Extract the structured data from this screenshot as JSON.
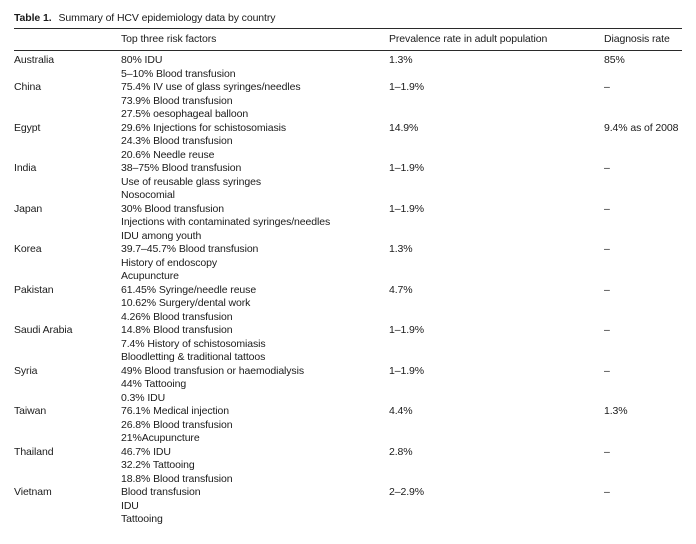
{
  "caption": {
    "label": "Table 1.",
    "text": "Summary of HCV epidemiology data by country"
  },
  "table": {
    "headers": {
      "country": "",
      "risk": "Top three risk factors",
      "prevalence": "Prevalence rate in adult population",
      "diagnosis": "Diagnosis rate"
    },
    "rows": [
      {
        "country": "Australia",
        "risk_factors": [
          "80% IDU",
          "5–10% Blood transfusion"
        ],
        "prevalence": "1.3%",
        "diagnosis": "85%"
      },
      {
        "country": "China",
        "risk_factors": [
          "75.4% IV use of glass syringes/needles",
          "73.9% Blood transfusion",
          "27.5% oesophageal balloon"
        ],
        "prevalence": "1–1.9%",
        "diagnosis": "–"
      },
      {
        "country": "Egypt",
        "risk_factors": [
          "29.6% Injections for schistosomiasis",
          "24.3% Blood transfusion",
          "20.6% Needle reuse"
        ],
        "prevalence": "14.9%",
        "diagnosis": "9.4% as of 2008"
      },
      {
        "country": "India",
        "risk_factors": [
          "38–75% Blood transfusion",
          "Use of reusable glass syringes",
          "Nosocomial"
        ],
        "prevalence": "1–1.9%",
        "diagnosis": "–"
      },
      {
        "country": "Japan",
        "risk_factors": [
          "30% Blood transfusion",
          "Injections with contaminated syringes/needles",
          "IDU among youth"
        ],
        "prevalence": "1–1.9%",
        "diagnosis": "–"
      },
      {
        "country": "Korea",
        "risk_factors": [
          "39.7–45.7% Blood transfusion",
          "History of endoscopy",
          "Acupuncture"
        ],
        "prevalence": "1.3%",
        "diagnosis": "–"
      },
      {
        "country": "Pakistan",
        "risk_factors": [
          "61.45% Syringe/needle reuse",
          "10.62% Surgery/dental work",
          "4.26% Blood transfusion"
        ],
        "prevalence": "4.7%",
        "diagnosis": "–"
      },
      {
        "country": "Saudi Arabia",
        "risk_factors": [
          "14.8% Blood transfusion",
          "7.4% History of schistosomiasis",
          "Bloodletting & traditional tattoos"
        ],
        "prevalence": "1–1.9%",
        "diagnosis": "–"
      },
      {
        "country": "Syria",
        "risk_factors": [
          "49% Blood transfusion or haemodialysis",
          "44% Tattooing",
          "0.3% IDU"
        ],
        "prevalence": "1–1.9%",
        "diagnosis": "–"
      },
      {
        "country": "Taiwan",
        "risk_factors": [
          "76.1% Medical injection",
          "26.8% Blood transfusion",
          "21%Acupuncture"
        ],
        "prevalence": "4.4%",
        "diagnosis": "1.3%"
      },
      {
        "country": "Thailand",
        "risk_factors": [
          "46.7% IDU",
          "32.2% Tattooing",
          "18.8% Blood transfusion"
        ],
        "prevalence": "2.8%",
        "diagnosis": "–"
      },
      {
        "country": "Vietnam",
        "risk_factors": [
          "Blood transfusion",
          "IDU",
          "Tattooing"
        ],
        "prevalence": "2–2.9%",
        "diagnosis": "–"
      }
    ]
  }
}
